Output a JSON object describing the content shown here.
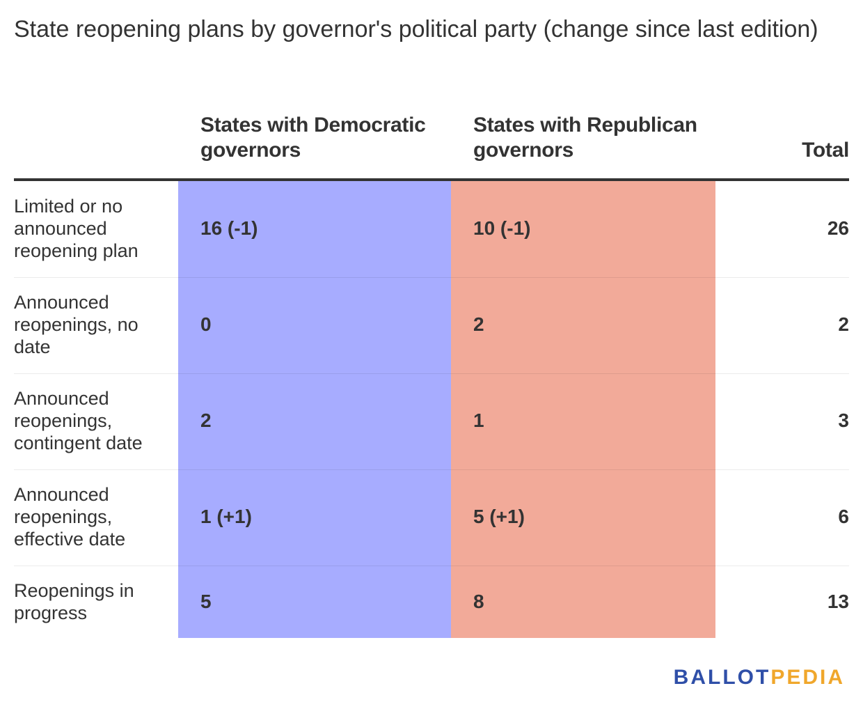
{
  "title": "State reopening plans by governor's political party (change since last edition)",
  "colors": {
    "democratic": "#a7acff",
    "republican": "#f2aa99",
    "text": "#333333",
    "logo_ballot": "#2f4fa8",
    "logo_pedia": "#f0a72c"
  },
  "chart_data": {
    "type": "table",
    "title": "State reopening plans by governor's political party (change since last edition)",
    "columns": [
      "",
      "States with Democratic governors",
      "States with Republican governors",
      "Total"
    ],
    "rows": [
      {
        "label": "Limited or no announced reopening plan",
        "democratic": "16 (-1)",
        "republican": "10 (-1)",
        "total": "26"
      },
      {
        "label": "Announced reopenings, no date",
        "democratic": "0",
        "republican": "2",
        "total": "2"
      },
      {
        "label": "Announced reopenings, contingent date",
        "democratic": "2",
        "republican": "1",
        "total": "3"
      },
      {
        "label": "Announced reopenings, effective date",
        "democratic": "1 (+1)",
        "republican": "5 (+1)",
        "total": "6"
      },
      {
        "label": "Reopenings in progress",
        "democratic": "5",
        "republican": "8",
        "total": "13"
      }
    ]
  },
  "logo": {
    "part1": "BALLOT",
    "part2": "PEDIA"
  }
}
